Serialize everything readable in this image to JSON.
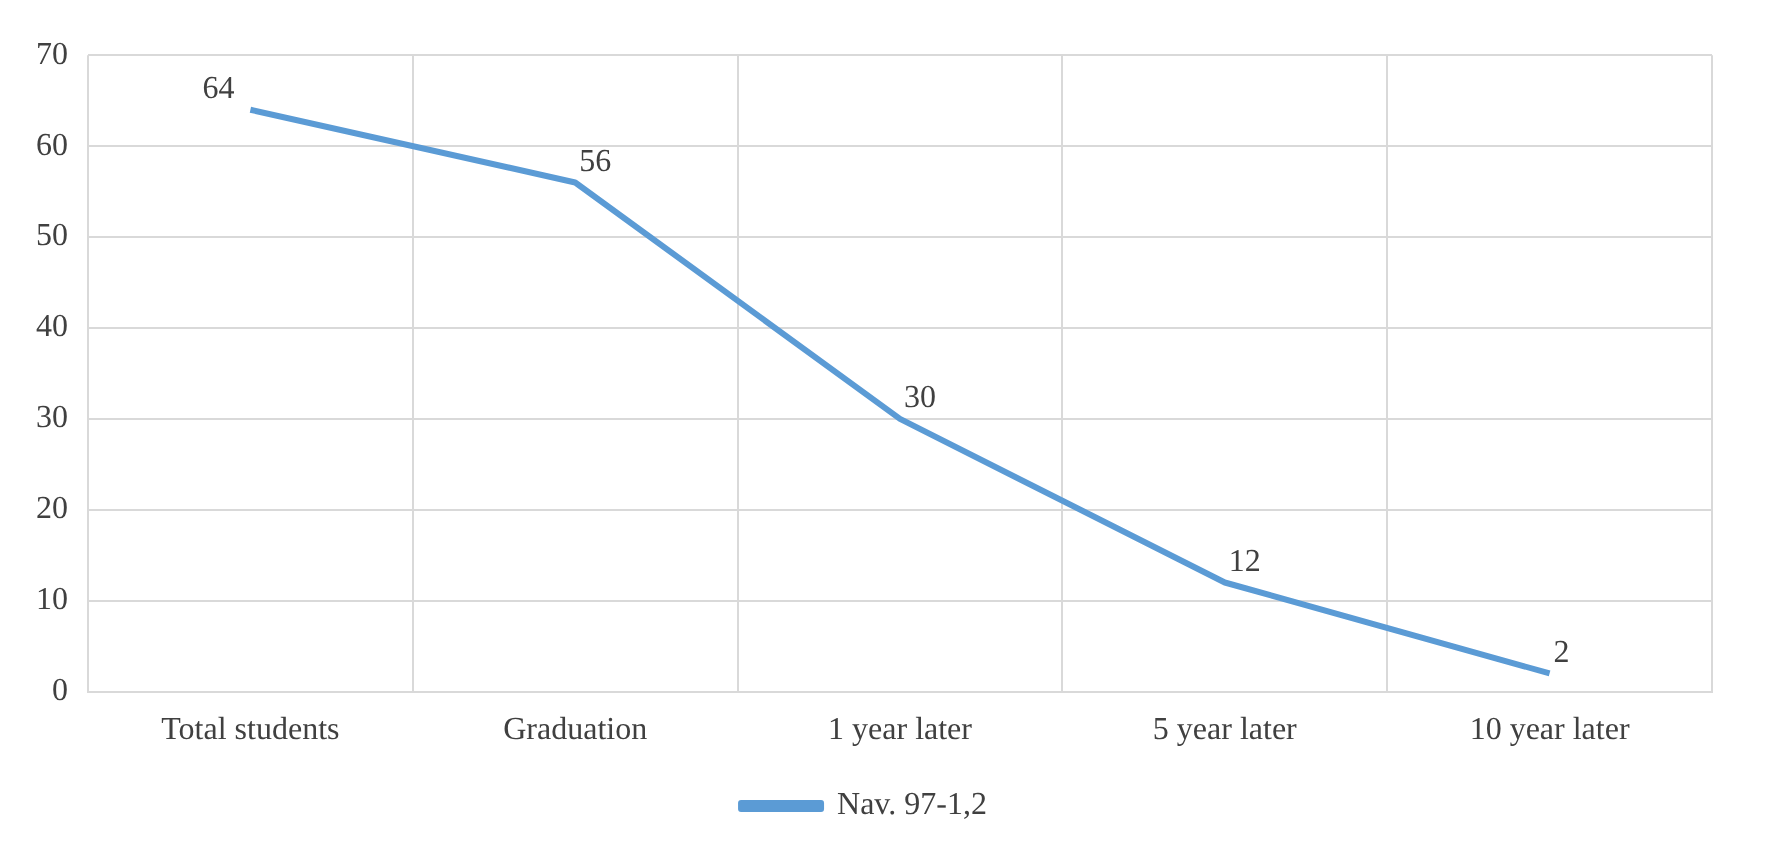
{
  "chart_data": {
    "type": "line",
    "categories": [
      "Total students",
      "Graduation",
      "1 year later",
      "5 year later",
      "10 year later"
    ],
    "series": [
      {
        "name": "Nav. 97-1,2",
        "color": "#5b9bd5",
        "values": [
          64,
          56,
          30,
          12,
          2
        ]
      }
    ],
    "ylim": [
      0,
      70
    ],
    "yticks": [
      0,
      10,
      20,
      30,
      40,
      50,
      60,
      70
    ],
    "grid": true,
    "legend": "bottom",
    "data_labels": true,
    "marker": "none",
    "line_style": "solid"
  }
}
